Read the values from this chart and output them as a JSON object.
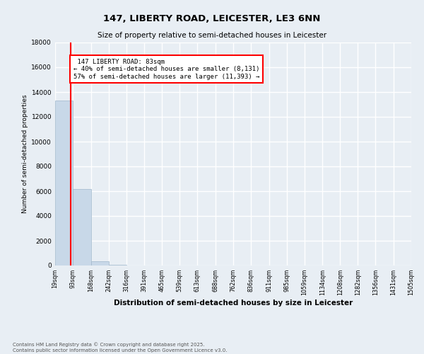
{
  "title": "147, LIBERTY ROAD, LEICESTER, LE3 6NN",
  "subtitle": "Size of property relative to semi-detached houses in Leicester",
  "xlabel": "Distribution of semi-detached houses by size in Leicester",
  "ylabel": "Number of semi-detached properties",
  "property_size": 83,
  "property_label": "147 LIBERTY ROAD: 83sqm",
  "pct_smaller": 40,
  "pct_larger": 57,
  "n_smaller": 8131,
  "n_larger": 11393,
  "bar_color": "#c8d8e8",
  "bar_edge_color": "#a0b8cc",
  "vline_color": "red",
  "background_color": "#e8eef4",
  "grid_color": "white",
  "ylim": [
    0,
    18000
  ],
  "bin_edges": [
    19,
    93,
    168,
    242,
    316,
    391,
    465,
    539,
    613,
    688,
    762,
    836,
    911,
    985,
    1059,
    1134,
    1208,
    1282,
    1356,
    1431,
    1505
  ],
  "bin_labels": [
    "19sqm",
    "93sqm",
    "168sqm",
    "242sqm",
    "316sqm",
    "391sqm",
    "465sqm",
    "539sqm",
    "613sqm",
    "688sqm",
    "762sqm",
    "836sqm",
    "911sqm",
    "985sqm",
    "1059sqm",
    "1134sqm",
    "1208sqm",
    "1282sqm",
    "1356sqm",
    "1431sqm",
    "1505sqm"
  ],
  "bar_heights": [
    13300,
    6200,
    350,
    50,
    8,
    4,
    2,
    1,
    1,
    0,
    0,
    0,
    0,
    0,
    0,
    0,
    0,
    0,
    0,
    0
  ],
  "footer_line1": "Contains HM Land Registry data © Crown copyright and database right 2025.",
  "footer_line2": "Contains public sector information licensed under the Open Government Licence v3.0."
}
